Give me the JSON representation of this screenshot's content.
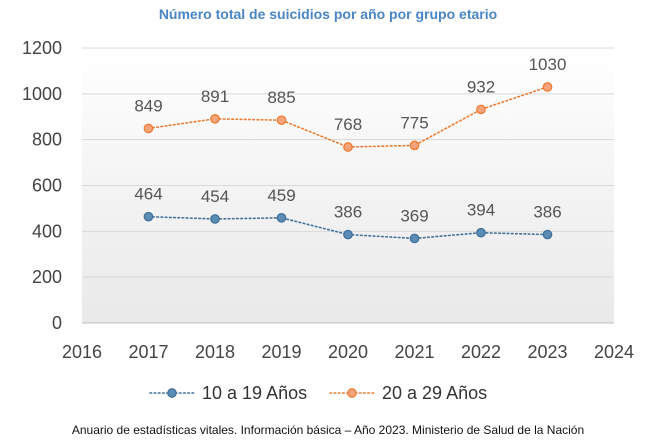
{
  "chart_data": {
    "type": "line",
    "title": "Número total de suicidios por año por grupo etario",
    "xlim": [
      2016,
      2024
    ],
    "x_ticks": [
      "2016",
      "2017",
      "2018",
      "2019",
      "2020",
      "2021",
      "2022",
      "2023",
      "2024"
    ],
    "ylim": [
      0,
      1200
    ],
    "y_ticks": [
      "0",
      "200",
      "400",
      "600",
      "800",
      "1000",
      "1200"
    ],
    "grid": "horizontal",
    "legend_position": "bottom",
    "x": [
      2017,
      2018,
      2019,
      2020,
      2021,
      2022,
      2023
    ],
    "series": [
      {
        "name": "10 a 19 Años",
        "values": [
          464,
          454,
          459,
          386,
          369,
          394,
          386
        ],
        "labels": [
          "464",
          "454",
          "459",
          "386",
          "369",
          "394",
          "386"
        ],
        "color": "#41719c",
        "marker_fill": "#5b8cb3",
        "line_style": "dotted"
      },
      {
        "name": "20 a 29 Años",
        "values": [
          849,
          891,
          885,
          768,
          775,
          932,
          1030
        ],
        "labels": [
          "849",
          "891",
          "885",
          "768",
          "775",
          "932",
          "1030"
        ],
        "color": "#ed7d31",
        "marker_fill": "#f4a37b",
        "line_style": "dotted"
      }
    ]
  },
  "source": "Anuario de estadísticas vitales. Información básica – Año 2023. Ministerio de Salud de la Nación"
}
